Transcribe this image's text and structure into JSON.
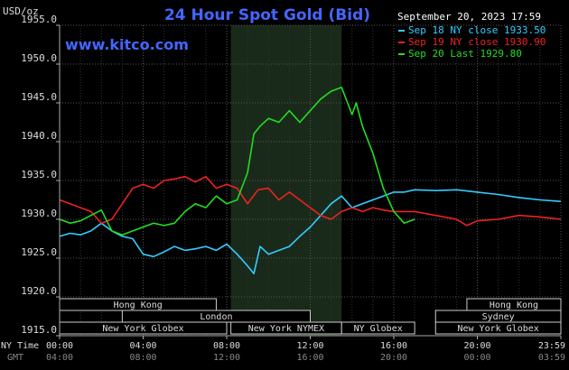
{
  "chart_data": {
    "type": "line",
    "title": "24 Hour Spot Gold (Bid)",
    "website": "www.kitco.com",
    "ylabel": "USD/oz",
    "date_label": "September 20, 2023 17:59",
    "ylim": [
      1915.0,
      1955.0
    ],
    "yticks": [
      "1955.0",
      "1950.0",
      "1945.0",
      "1940.0",
      "1935.0",
      "1930.0",
      "1925.0",
      "1920.0",
      "1915.0"
    ],
    "x_axis_label_ny": "NY Time",
    "x_axis_label_gmt": "GMT",
    "xticks_ny": [
      "00:00",
      "04:00",
      "08:00",
      "12:00",
      "16:00",
      "20:00",
      "23:59"
    ],
    "xticks_gmt": [
      "04:00",
      "08:00",
      "12:00",
      "16:00",
      "20:00",
      "00:00",
      "03:59"
    ],
    "market_hours": [
      {
        "label": "Hong Kong",
        "start": 0,
        "end": 7.5,
        "row": 0
      },
      {
        "label": "London",
        "start": 3,
        "end": 12,
        "row": 1
      },
      {
        "label": "New York Globex",
        "start": 0,
        "end": 8,
        "row": 2
      },
      {
        "label": "New York NYMEX",
        "start": 8.2,
        "end": 13.5,
        "row": 2
      },
      {
        "label": "NY Globex",
        "start": 13.5,
        "end": 17,
        "row": 2
      },
      {
        "label": "Hong Kong",
        "start": 19.5,
        "end": 24,
        "row": 0
      },
      {
        "label": "Sydney",
        "start": 18,
        "end": 24,
        "row": 1
      },
      {
        "label": "New York Globex",
        "start": 18,
        "end": 24,
        "row": 2
      }
    ],
    "highlight_range": [
      8.2,
      13.5
    ],
    "series": [
      {
        "name": "Sep 18 NY close 1933.50",
        "color": "#33ccff",
        "x": [
          0,
          0.5,
          1,
          1.5,
          2,
          2.5,
          3,
          3.5,
          4,
          4.5,
          5,
          5.5,
          6,
          6.5,
          7,
          7.5,
          8,
          8.5,
          9,
          9.3,
          9.6,
          10,
          10.5,
          11,
          11.5,
          12,
          12.5,
          13,
          13.5,
          14,
          14.5,
          15,
          15.5,
          16,
          16.5,
          17,
          18,
          19,
          20,
          21,
          22,
          23,
          24
        ],
        "y": [
          1927.8,
          1928.2,
          1928.0,
          1928.5,
          1929.5,
          1928.5,
          1927.8,
          1927.5,
          1925.5,
          1925.2,
          1925.8,
          1926.5,
          1926.0,
          1926.2,
          1926.5,
          1926.0,
          1926.8,
          1925.5,
          1924.0,
          1923.0,
          1926.5,
          1925.5,
          1926.0,
          1926.5,
          1927.8,
          1929.0,
          1930.5,
          1932.0,
          1933.0,
          1931.5,
          1932.0,
          1932.5,
          1933.0,
          1933.5,
          1933.5,
          1933.8,
          1933.7,
          1933.8,
          1933.5,
          1933.2,
          1932.8,
          1932.5,
          1932.3
        ]
      },
      {
        "name": "Sep 19 NY close 1930.90",
        "color": "#ee2222",
        "x": [
          0,
          0.5,
          1,
          1.5,
          2,
          2.5,
          3,
          3.5,
          4,
          4.5,
          5,
          5.5,
          6,
          6.5,
          7,
          7.5,
          8,
          8.5,
          9,
          9.5,
          10,
          10.5,
          11,
          11.5,
          12,
          12.5,
          13,
          13.5,
          14,
          14.5,
          15,
          15.5,
          16,
          16.5,
          17,
          18,
          19,
          19.5,
          20,
          21,
          22,
          23,
          24
        ],
        "y": [
          1932.5,
          1932.0,
          1931.5,
          1931.0,
          1929.5,
          1930.0,
          1932.0,
          1934.0,
          1934.5,
          1934.0,
          1935.0,
          1935.2,
          1935.5,
          1934.8,
          1935.5,
          1934.0,
          1934.5,
          1934.0,
          1932.0,
          1933.8,
          1934.0,
          1932.5,
          1933.5,
          1932.5,
          1931.5,
          1930.5,
          1930.0,
          1931.0,
          1931.5,
          1931.0,
          1931.5,
          1931.2,
          1931.0,
          1931.0,
          1931.0,
          1930.5,
          1930.0,
          1929.2,
          1929.8,
          1930.0,
          1930.5,
          1930.3,
          1930.0
        ]
      },
      {
        "name": "Sep 20 Last 1929.80",
        "color": "#22dd22",
        "x": [
          0,
          0.5,
          1,
          1.5,
          2,
          2.5,
          3,
          3.5,
          4,
          4.5,
          5,
          5.5,
          6,
          6.5,
          7,
          7.5,
          8,
          8.5,
          9,
          9.3,
          9.6,
          10,
          10.5,
          11,
          11.5,
          12,
          12.5,
          13,
          13.5,
          14,
          14.2,
          14.5,
          15,
          15.5,
          16,
          16.5,
          17
        ],
        "y": [
          1930.0,
          1929.5,
          1929.8,
          1930.5,
          1931.2,
          1928.5,
          1928.0,
          1928.5,
          1929.0,
          1929.5,
          1929.2,
          1929.5,
          1931.0,
          1932.0,
          1931.5,
          1933.0,
          1932.0,
          1932.5,
          1936.0,
          1941.0,
          1942.0,
          1943.0,
          1942.5,
          1944.0,
          1942.5,
          1944.0,
          1945.5,
          1946.5,
          1947.0,
          1943.5,
          1945.0,
          1942.0,
          1938.5,
          1934.0,
          1931.0,
          1929.5,
          1930.0
        ]
      }
    ]
  }
}
